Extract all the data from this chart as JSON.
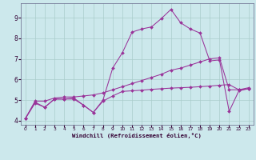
{
  "xlabel": "Windchill (Refroidissement éolien,°C)",
  "bg_color": "#cce8ec",
  "grid_color": "#aacccc",
  "line_color": "#993399",
  "xlim": [
    -0.5,
    23.5
  ],
  "ylim": [
    3.8,
    9.7
  ],
  "xticks": [
    0,
    1,
    2,
    3,
    4,
    5,
    6,
    7,
    8,
    9,
    10,
    11,
    12,
    13,
    14,
    15,
    16,
    17,
    18,
    19,
    20,
    21,
    22,
    23
  ],
  "yticks": [
    4,
    5,
    6,
    7,
    8,
    9
  ],
  "series3_x": [
    0,
    1,
    2,
    3,
    4,
    5,
    6,
    7,
    8,
    9,
    10,
    11,
    12,
    13,
    14,
    15,
    16,
    17,
    18,
    19,
    20,
    21,
    22,
    23
  ],
  "series3_y": [
    4.1,
    4.9,
    4.65,
    5.05,
    5.05,
    5.1,
    4.75,
    4.4,
    5.0,
    6.55,
    7.3,
    8.3,
    8.45,
    8.55,
    8.95,
    9.4,
    8.75,
    8.45,
    8.25,
    6.9,
    6.95,
    4.45,
    5.45,
    5.55
  ],
  "series2_x": [
    0,
    1,
    2,
    3,
    4,
    5,
    6,
    7,
    8,
    9,
    10,
    11,
    12,
    13,
    14,
    15,
    16,
    17,
    18,
    19,
    20,
    21,
    22,
    23
  ],
  "series2_y": [
    4.1,
    4.95,
    4.95,
    5.1,
    5.15,
    5.15,
    5.2,
    5.25,
    5.35,
    5.5,
    5.65,
    5.8,
    5.95,
    6.1,
    6.25,
    6.45,
    6.55,
    6.7,
    6.85,
    7.0,
    7.05,
    5.5,
    5.5,
    5.6
  ],
  "series1_x": [
    0,
    1,
    2,
    3,
    4,
    5,
    6,
    7,
    8,
    9,
    10,
    11,
    12,
    13,
    14,
    15,
    16,
    17,
    18,
    19,
    20,
    21,
    22,
    23
  ],
  "series1_y": [
    4.1,
    4.85,
    4.65,
    5.05,
    5.05,
    5.05,
    4.75,
    4.4,
    4.95,
    5.2,
    5.42,
    5.45,
    5.48,
    5.52,
    5.55,
    5.58,
    5.6,
    5.62,
    5.65,
    5.68,
    5.72,
    5.75,
    5.5,
    5.55
  ]
}
